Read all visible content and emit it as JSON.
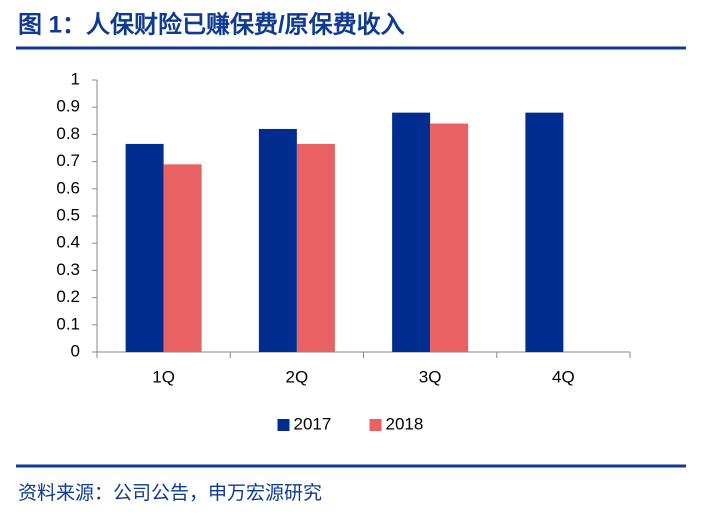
{
  "chart_data": {
    "type": "bar",
    "title": "图 1：人保财险已赚保费/原保费收入",
    "source": "资料来源：公司公告，申万宏源研究",
    "categories": [
      "1Q",
      "2Q",
      "3Q",
      "4Q"
    ],
    "series": [
      {
        "name": "2017",
        "color": "#002d8f",
        "values": [
          0.765,
          0.82,
          0.88,
          0.88
        ]
      },
      {
        "name": "2018",
        "color": "#e86163",
        "values": [
          0.69,
          0.765,
          0.84,
          null
        ]
      }
    ],
    "ylim": [
      0,
      1
    ],
    "yticks": [
      0,
      0.1,
      0.2,
      0.3,
      0.4,
      0.5,
      0.6,
      0.7,
      0.8,
      0.9,
      1
    ],
    "grid": false,
    "legend": "bottom"
  }
}
